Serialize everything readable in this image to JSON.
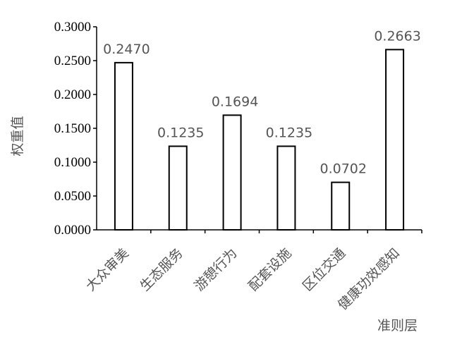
{
  "chart_data": {
    "type": "bar",
    "title": "",
    "xlabel": "准则层",
    "ylabel": "权重值",
    "categories": [
      "大众审美",
      "生态服务",
      "游憩行为",
      "配套设施",
      "区位交通",
      "健康功效感知"
    ],
    "values": [
      0.247,
      0.1235,
      0.1694,
      0.1235,
      0.0702,
      0.2663
    ],
    "value_labels": [
      "0.2470",
      "0.1235",
      "0.1694",
      "0.1235",
      "0.0702",
      "0.2663"
    ],
    "y_ticks": [
      "0.0000",
      "0.0500",
      "0.1000",
      "0.1500",
      "0.2000",
      "0.2500",
      "0.3000"
    ],
    "ylim": [
      0,
      0.3
    ],
    "grid": false,
    "legend": "none",
    "bar_fill": "#ffffff",
    "bar_stroke": "#000000"
  }
}
